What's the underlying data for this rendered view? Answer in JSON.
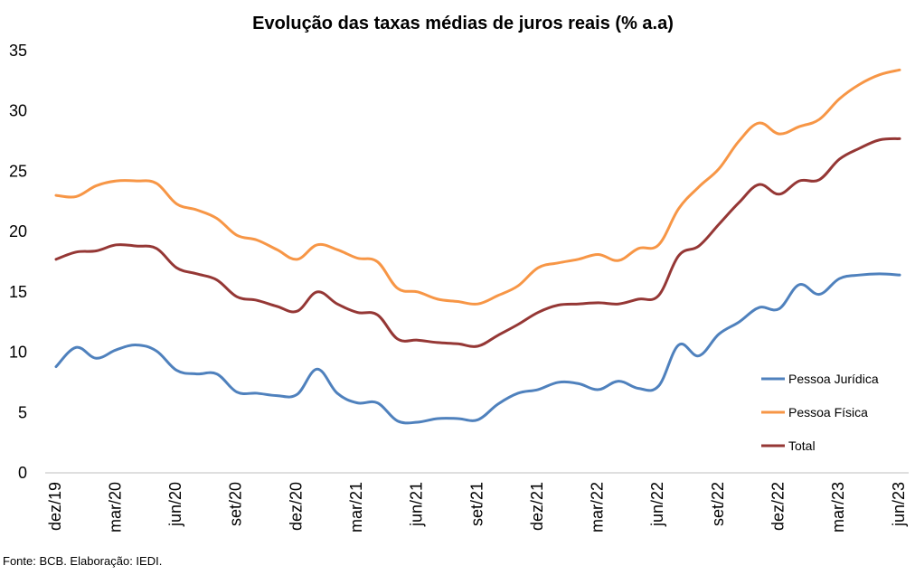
{
  "chart_data": {
    "type": "line",
    "title": "Evolução das taxas médias de juros reais (% a.a)",
    "xlabel": "",
    "ylabel": "",
    "ylim": [
      0,
      35
    ],
    "yticks": [
      "0",
      "5",
      "10",
      "15",
      "20",
      "25",
      "30",
      "35"
    ],
    "grid": false,
    "legend_position": "right",
    "x": [
      "dez/19",
      "jan/20",
      "fev/20",
      "mar/20",
      "abr/20",
      "mai/20",
      "jun/20",
      "jul/20",
      "ago/20",
      "set/20",
      "out/20",
      "nov/20",
      "dez/20",
      "jan/21",
      "fev/21",
      "mar/21",
      "abr/21",
      "mai/21",
      "jun/21",
      "jul/21",
      "ago/21",
      "set/21",
      "out/21",
      "nov/21",
      "dez/21",
      "jan/22",
      "fev/22",
      "mar/22",
      "abr/22",
      "mai/22",
      "jun/22",
      "jul/22",
      "ago/22",
      "set/22",
      "out/22",
      "nov/22",
      "dez/22",
      "jan/23",
      "fev/23",
      "mar/23",
      "abr/23",
      "mai/23",
      "jun/23"
    ],
    "xtick_labels": [
      "dez/19",
      "mar/20",
      "jun/20",
      "set/20",
      "dez/20",
      "mar/21",
      "jun/21",
      "set/21",
      "dez/21",
      "mar/22",
      "jun/22",
      "set/22",
      "dez/22",
      "mar/23",
      "jun/23"
    ],
    "series": [
      {
        "name": "Pessoa Jurídica",
        "color": "#4f81bd",
        "values": [
          8.8,
          10.4,
          9.5,
          10.2,
          10.6,
          10.1,
          8.5,
          8.2,
          8.2,
          6.7,
          6.6,
          6.4,
          6.5,
          8.6,
          6.6,
          5.8,
          5.8,
          4.3,
          4.2,
          4.5,
          4.5,
          4.4,
          5.7,
          6.6,
          6.9,
          7.5,
          7.4,
          6.9,
          7.6,
          7.0,
          7.2,
          10.6,
          9.7,
          11.5,
          12.5,
          13.7,
          13.6,
          15.6,
          14.8,
          16.1,
          16.4,
          16.5,
          16.4
        ]
      },
      {
        "name": "Pessoa Física",
        "color": "#f79646",
        "values": [
          23.0,
          22.9,
          23.8,
          24.2,
          24.2,
          24.0,
          22.3,
          21.8,
          21.1,
          19.7,
          19.3,
          18.5,
          17.7,
          18.9,
          18.5,
          17.8,
          17.5,
          15.3,
          15.0,
          14.4,
          14.2,
          14.0,
          14.7,
          15.5,
          17.0,
          17.4,
          17.7,
          18.1,
          17.6,
          18.6,
          18.9,
          21.9,
          23.7,
          25.2,
          27.5,
          29.0,
          28.1,
          28.7,
          29.3,
          31.0,
          32.2,
          33.0,
          33.4
        ]
      },
      {
        "name": "Total",
        "color": "#953735",
        "values": [
          17.7,
          18.3,
          18.4,
          18.9,
          18.8,
          18.6,
          17.0,
          16.5,
          16.0,
          14.6,
          14.3,
          13.8,
          13.4,
          15.0,
          14.0,
          13.3,
          13.1,
          11.1,
          11.0,
          10.8,
          10.7,
          10.5,
          11.4,
          12.3,
          13.3,
          13.9,
          14.0,
          14.1,
          14.0,
          14.4,
          14.7,
          18.0,
          18.8,
          20.6,
          22.4,
          23.9,
          23.1,
          24.2,
          24.3,
          26.0,
          26.9,
          27.6,
          27.7
        ]
      }
    ],
    "source_note": "Fonte: BCB. Elaboração: IEDI."
  }
}
